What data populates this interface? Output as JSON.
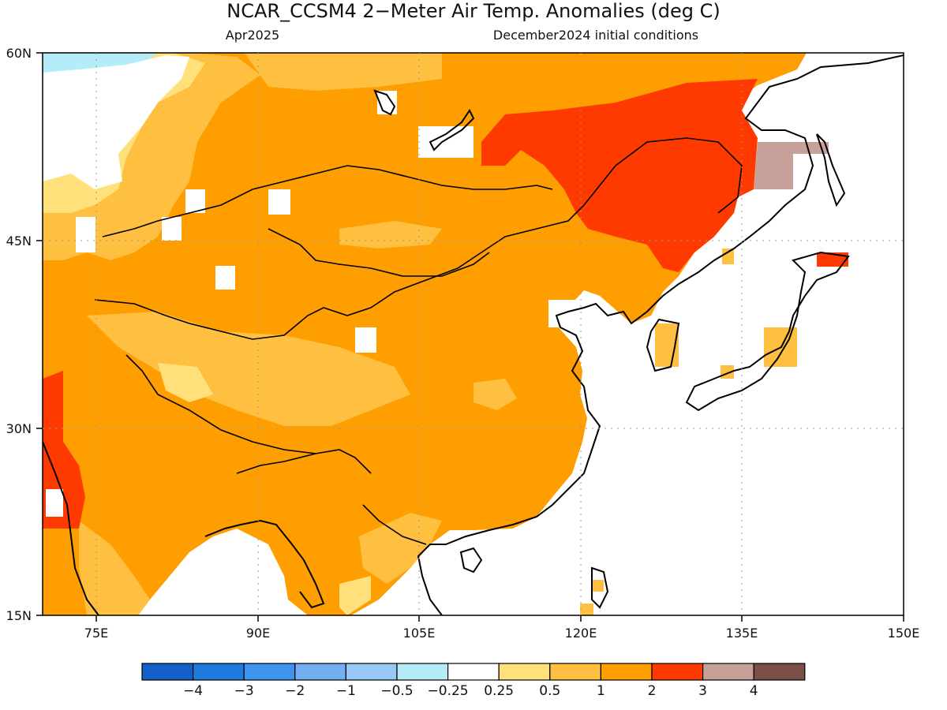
{
  "header": {
    "title": "NCAR_CCSM4 2−Meter Air Temp. Anomalies (deg C)",
    "valid_month": "Apr2025",
    "init": "December2024 initial conditions"
  },
  "axes": {
    "lat_labels": [
      "60N",
      "45N",
      "30N",
      "15N"
    ],
    "lon_labels": [
      "75E",
      "90E",
      "105E",
      "120E",
      "135E",
      "150E"
    ]
  },
  "colorbar": {
    "labels": [
      "−4",
      "−3",
      "−2",
      "−1",
      "−0.5",
      "−0.25",
      "0.25",
      "0.5",
      "1",
      "2",
      "3",
      "4"
    ],
    "colors": [
      "#1560c8",
      "#1f7ae0",
      "#3d93ee",
      "#72b0f2",
      "#99c8f6",
      "#b4ecf8",
      "#ffffff",
      "#ffe07a",
      "#ffbf40",
      "#ff9e00",
      "#fe3a00",
      "#c8a09a",
      "#7a5048"
    ]
  },
  "map_colors": {
    "ocean": "#ffffff",
    "land_warm": "#ff9e00",
    "land_mild": "#ffbf40",
    "land_light": "#ffe07a",
    "hot": "#fe3a00",
    "very_hot": "#c8a09a",
    "cool": "#b4ecf8",
    "coast": "#000000"
  }
}
